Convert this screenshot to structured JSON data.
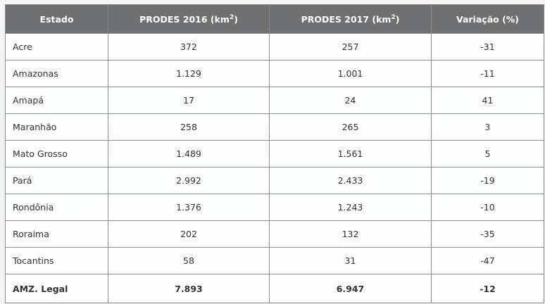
{
  "table": {
    "headers": {
      "estado": "Estado",
      "prodes2016_prefix": "PRODES 2016 (km",
      "prodes2016_sup": "2",
      "prodes2016_suffix": ")",
      "prodes2017_prefix": "PRODES 2017 (km",
      "prodes2017_sup": "2",
      "prodes2017_suffix": ")",
      "variacao": "Variação (%)"
    },
    "rows": [
      {
        "estado": "Acre",
        "p2016": "372",
        "p2017": "257",
        "variacao": "-31"
      },
      {
        "estado": "Amazonas",
        "p2016": "1.129",
        "p2017": "1.001",
        "variacao": "-11"
      },
      {
        "estado": "Amapá",
        "p2016": "17",
        "p2017": "24",
        "variacao": "41"
      },
      {
        "estado": "Maranhão",
        "p2016": "258",
        "p2017": "265",
        "variacao": "3"
      },
      {
        "estado": "Mato Grosso",
        "p2016": "1.489",
        "p2017": "1.561",
        "variacao": "5"
      },
      {
        "estado": "Pará",
        "p2016": "2.992",
        "p2017": "2.433",
        "variacao": "-19"
      },
      {
        "estado": "Rondônia",
        "p2016": "1.376",
        "p2017": "1.243",
        "variacao": "-10"
      },
      {
        "estado": "Roraima",
        "p2016": "202",
        "p2017": "132",
        "variacao": "-35"
      },
      {
        "estado": "Tocantins",
        "p2016": "58",
        "p2017": "31",
        "variacao": "-47"
      }
    ],
    "total": {
      "estado": "AMZ. Legal",
      "p2016": "7.893",
      "p2017": "6.947",
      "variacao": "-12"
    }
  },
  "colors": {
    "header_bg": "#6f7072",
    "header_text": "#ffffff",
    "border": "#8c8c8c",
    "text": "#333333"
  }
}
